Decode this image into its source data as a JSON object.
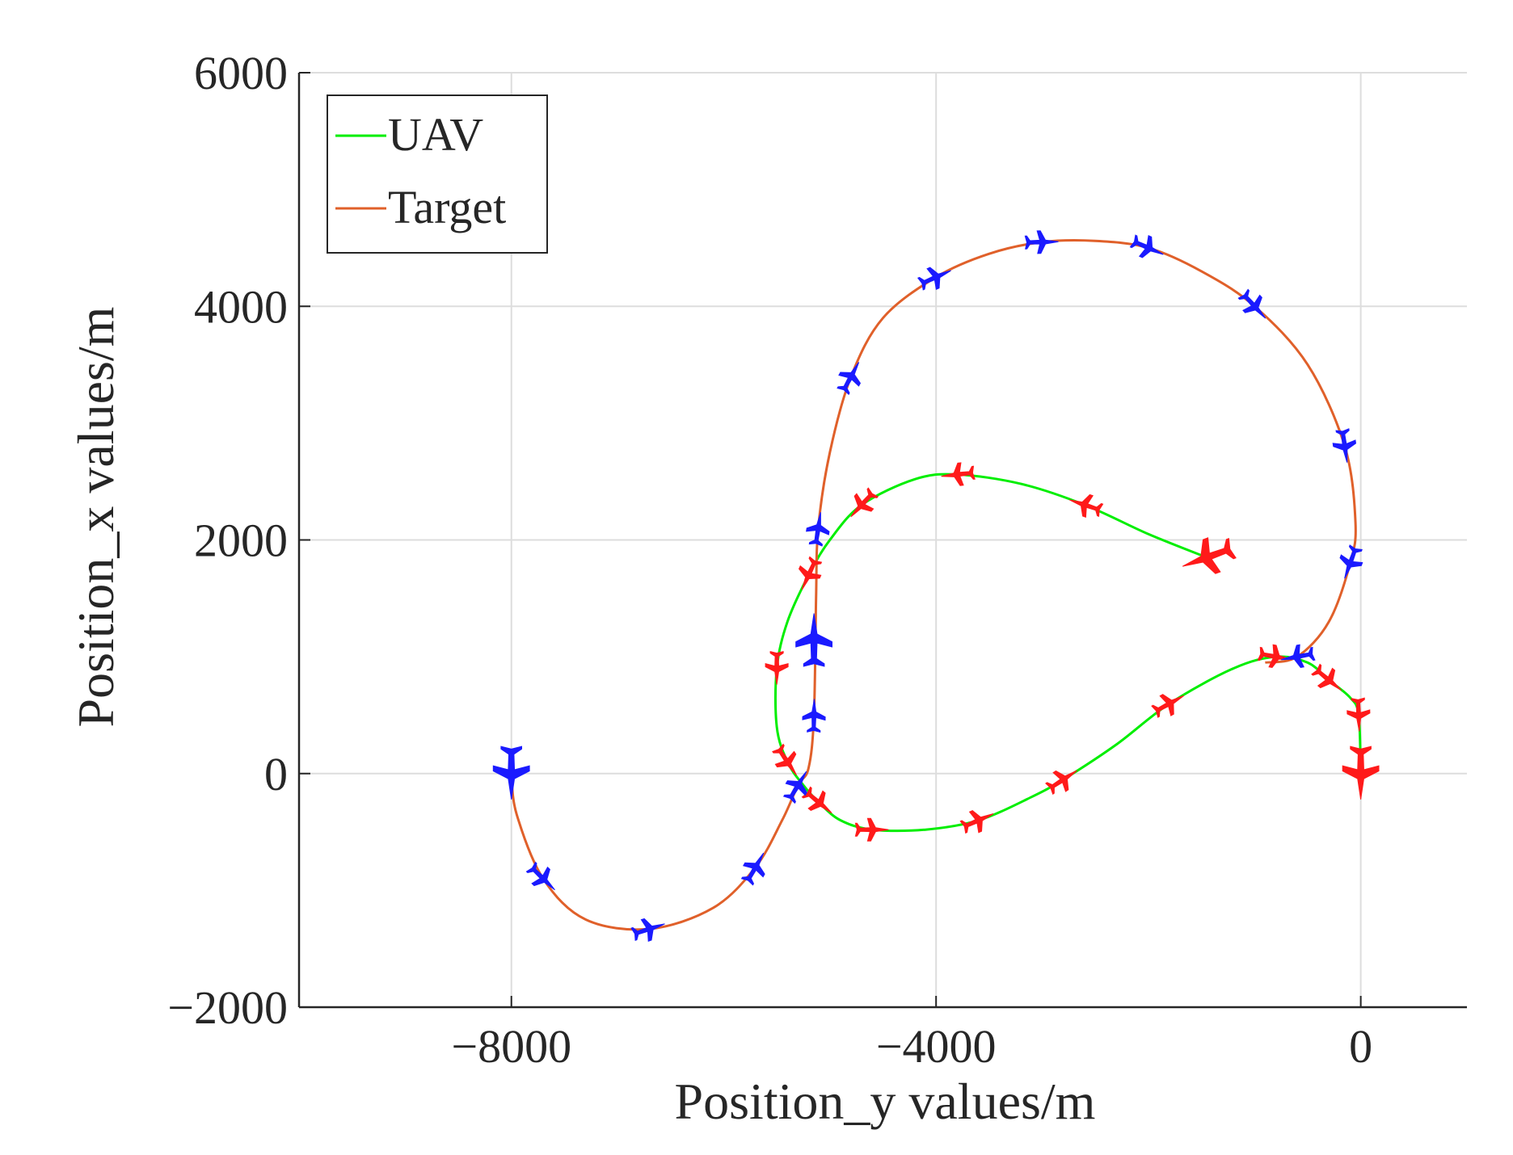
{
  "colors": {
    "uav": "#00ee00",
    "target": "#e0602a",
    "uav_marker": "#ff1a1a",
    "target_marker": "#1a1aff",
    "grid": "#dddddd",
    "axis": "#262626"
  },
  "chart_data": {
    "type": "line",
    "title": "",
    "xlabel": "Position_y values/m",
    "ylabel": "Position_x values/m",
    "xlim": [
      -10000,
      1000
    ],
    "ylim": [
      -2000,
      6000
    ],
    "xticks": [
      -8000,
      -4000,
      0
    ],
    "yticks": [
      -2000,
      0,
      2000,
      4000,
      6000
    ],
    "xtick_labels": [
      "−8000",
      "−4000",
      "0"
    ],
    "ytick_labels": [
      "−2000",
      "0",
      "2000",
      "4000",
      "6000"
    ],
    "grid": true,
    "legend_position": "top-left",
    "legend": [
      "UAV",
      "Target"
    ],
    "series": [
      {
        "name": "UAV",
        "color": "#00ee00",
        "x": [
          -1450,
          -2000,
          -2600,
          -3200,
          -3800,
          -4200,
          -4700,
          -5000,
          -5200,
          -5400,
          -5500,
          -5500,
          -5400,
          -5250,
          -5100,
          -4900,
          -4600,
          -4100,
          -3600,
          -3100,
          -2800,
          -2300,
          -1800,
          -1200,
          -800,
          -500,
          -300,
          -100,
          -20,
          0
        ],
        "y": [
          1850,
          2050,
          2300,
          2480,
          2560,
          2520,
          2300,
          2000,
          1700,
          1300,
          900,
          400,
          100,
          -100,
          -250,
          -400,
          -480,
          -480,
          -400,
          -200,
          -50,
          250,
          600,
          900,
          1000,
          950,
          800,
          650,
          500,
          0
        ]
      },
      {
        "name": "Target",
        "color": "#e0602a",
        "x": [
          -8000,
          -7950,
          -7700,
          -7300,
          -6700,
          -6100,
          -5700,
          -5450,
          -5300,
          -5200,
          -5150,
          -5130,
          -5110,
          -5000,
          -4800,
          -4500,
          -4000,
          -3500,
          -3000,
          -2500,
          -2000,
          -1500,
          -1000,
          -500,
          -150,
          -50,
          -100,
          -300,
          -600,
          -900
        ],
        "y": [
          0,
          -350,
          -900,
          -1250,
          -1330,
          -1150,
          -800,
          -400,
          -100,
          50,
          500,
          1500,
          2100,
          2750,
          3400,
          3900,
          4250,
          4450,
          4550,
          4560,
          4500,
          4300,
          4000,
          3500,
          2800,
          2150,
          1800,
          1300,
          1000,
          950
        ]
      }
    ],
    "markers": {
      "uav_start": [
        0,
        0
      ],
      "target_start": [
        -8000,
        0
      ],
      "uav_end": [
        -1450,
        1850
      ],
      "target_end": [
        -5150,
        1150
      ]
    }
  }
}
